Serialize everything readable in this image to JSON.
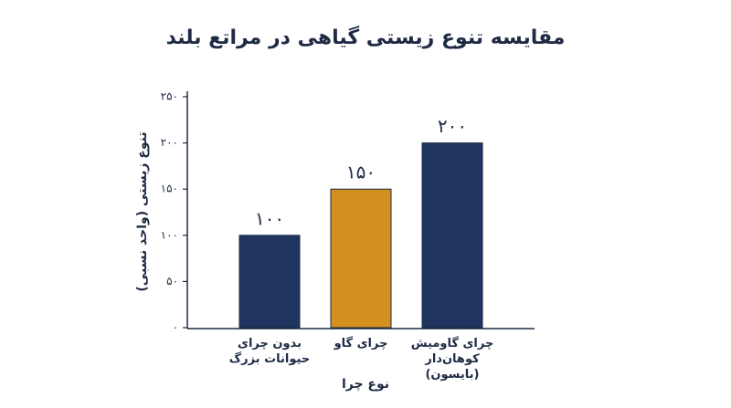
{
  "chart_data": {
    "type": "bar",
    "title": "مقایسه تنوع زیستی گیاهی در مراتع بلند",
    "x_label": "نوع چرا",
    "y_label": "تنوع زیستی (واحد نسبی)",
    "categories": [
      "بدون چرای حیوانات بزرگ",
      "چرای گاو",
      "چرای گاومیش کوهان‌دار (بایسون)"
    ],
    "values": [
      100,
      150,
      200
    ],
    "value_labels": [
      "۱۰۰",
      "۱۵۰",
      "۲۰۰"
    ],
    "colors": [
      "#1f3560",
      "#d4901f",
      "#1f3560"
    ],
    "ylim": [
      0,
      250
    ],
    "yticks": [
      {
        "value": 0,
        "label": "۰"
      },
      {
        "value": 50,
        "label": "۵۰"
      },
      {
        "value": 100,
        "label": "۱۰۰"
      },
      {
        "value": 150,
        "label": "۱۵۰"
      },
      {
        "value": 200,
        "label": "۲۰۰"
      },
      {
        "value": 250,
        "label": "۲۵۰"
      }
    ],
    "grid": false
  }
}
